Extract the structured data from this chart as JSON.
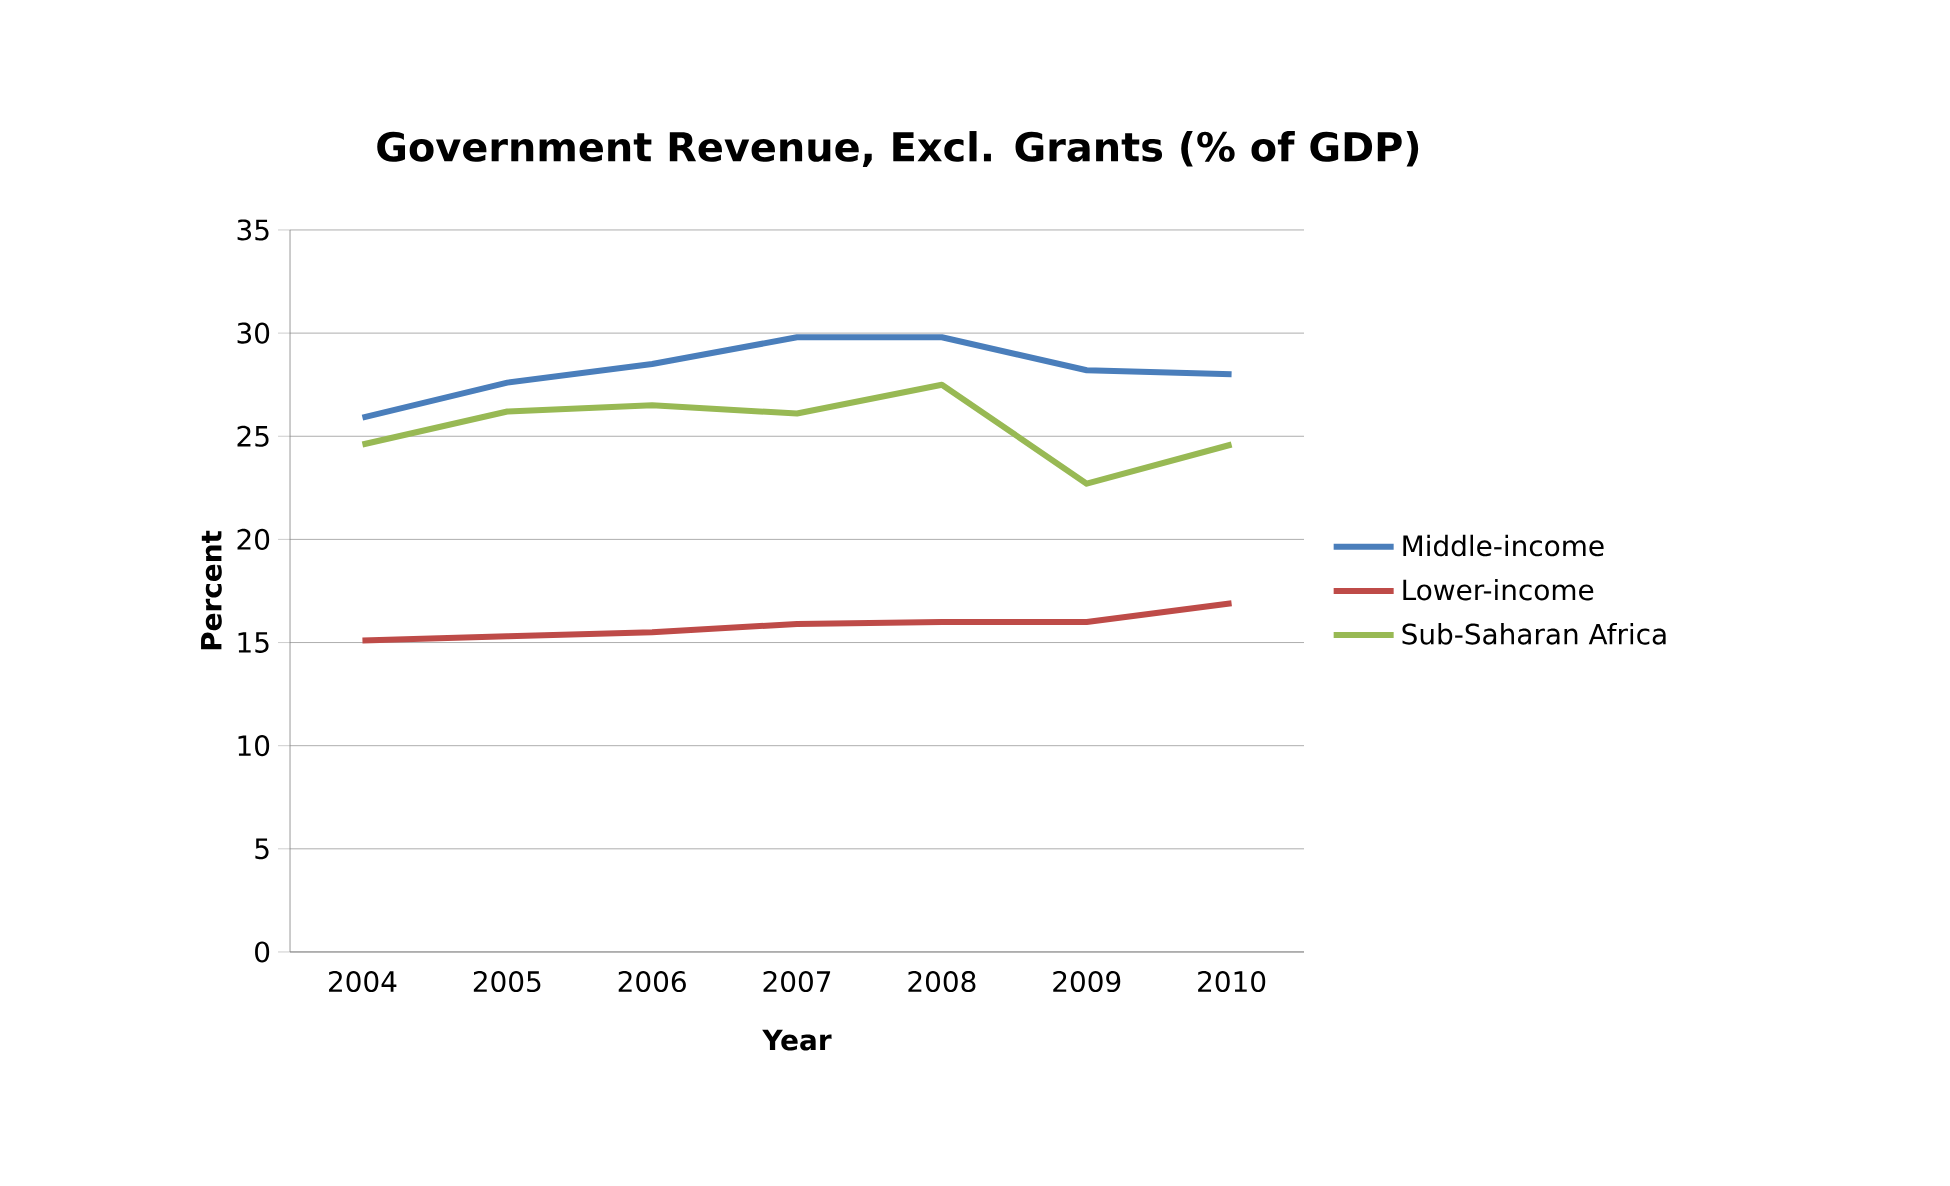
{
  "chart_data": {
    "type": "line",
    "title": "Government Revenue, Excl. Grants (% of GDP)",
    "xlabel": "Year",
    "ylabel": "Percent",
    "categories": [
      "2004",
      "2005",
      "2006",
      "2007",
      "2008",
      "2009",
      "2010"
    ],
    "series": [
      {
        "name": "Middle-income",
        "color": "#4a7ebb",
        "values": [
          25.9,
          27.6,
          28.5,
          29.8,
          29.8,
          28.2,
          28.0
        ]
      },
      {
        "name": "Lower-income",
        "color": "#be4b48",
        "values": [
          15.1,
          15.3,
          15.5,
          15.9,
          16.0,
          16.0,
          16.9
        ]
      },
      {
        "name": "Sub-Saharan Africa",
        "color": "#98b954",
        "values": [
          24.6,
          26.2,
          26.5,
          26.1,
          27.5,
          22.7,
          24.6
        ]
      }
    ],
    "ylim": [
      0,
      35
    ],
    "yticks": [
      0,
      5,
      10,
      15,
      20,
      25,
      30,
      35
    ],
    "grid": "y",
    "legend": "right",
    "marker": "none",
    "line_style": "solid"
  }
}
